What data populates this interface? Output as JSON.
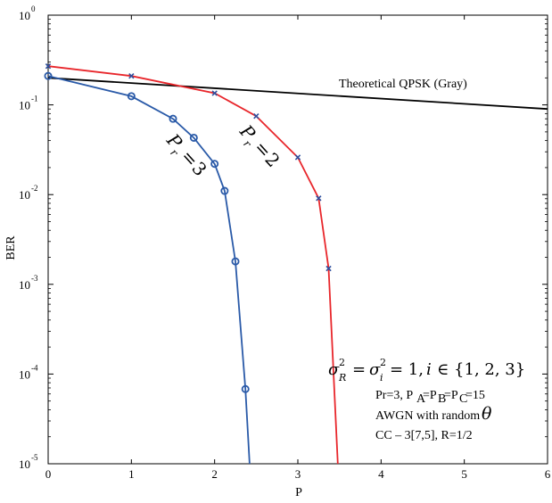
{
  "chart_data": {
    "type": "line",
    "title": "",
    "xlabel": "P",
    "ylabel": "BER",
    "xlim": [
      0,
      6
    ],
    "ylim": [
      1e-05,
      1
    ],
    "y_scale": "log",
    "grid": false,
    "x_ticks": [
      "0",
      "1",
      "2",
      "3",
      "4",
      "5",
      "6"
    ],
    "y_ticks": [
      {
        "base": "10",
        "exp": "0",
        "value": 1
      },
      {
        "base": "10",
        "exp": "-1",
        "value": 0.1
      },
      {
        "base": "10",
        "exp": "-2",
        "value": 0.01
      },
      {
        "base": "10",
        "exp": "-3",
        "value": 0.001
      },
      {
        "base": "10",
        "exp": "-4",
        "value": 0.0001
      },
      {
        "base": "10",
        "exp": "-5",
        "value": 1e-05
      }
    ],
    "series": [
      {
        "name": "Theoretical QPSK (Gray)",
        "color": "#000000",
        "marker": "none",
        "x": [
          0,
          6
        ],
        "y": [
          0.2,
          0.09
        ]
      },
      {
        "name": "P_r = 2",
        "color": "#e8262b",
        "marker_color": "#2e4f9e",
        "marker": "x",
        "x": [
          0,
          1,
          2,
          2.5,
          3,
          3.25,
          3.37,
          3.48
        ],
        "y": [
          0.27,
          0.21,
          0.135,
          0.075,
          0.026,
          0.0091,
          0.0015,
          1e-05
        ]
      },
      {
        "name": "P_r = 3",
        "color": "#2a5aa8",
        "marker": "o",
        "x": [
          0,
          1,
          1.5,
          1.75,
          2,
          2.12,
          2.25,
          2.37,
          2.42
        ],
        "y": [
          0.21,
          0.125,
          0.07,
          0.043,
          0.022,
          0.011,
          0.0018,
          6.8e-05,
          1e-05
        ]
      }
    ],
    "annotations": {
      "qpsk_label": "Theoretical QPSK (Gray)",
      "pr2_label": "P_r = 2",
      "pr3_label": "P_r = 3",
      "variance_line": "σ²_R = σ²_i = 1, i ∈ {1, 2, 3}",
      "params_line": "Pr=3, P_A=P_B=P_C=15",
      "awgn_line": "AWGN with random θ",
      "cc_line": "CC – 3[7,5], R=1/2"
    }
  }
}
